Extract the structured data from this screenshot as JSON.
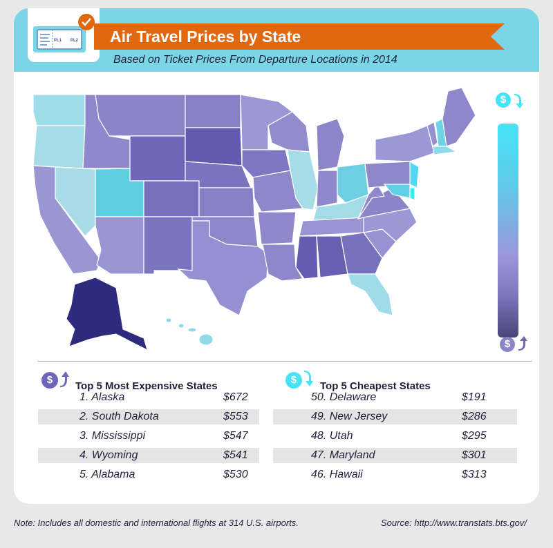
{
  "header": {
    "title": "Air Travel Prices by State",
    "subtitle": "Based on Ticket Prices From Departure Locations in 2014"
  },
  "icon": {
    "boarding_pass_from": "PL1",
    "boarding_pass_to": "PL2"
  },
  "legend": {
    "top_icon": "dollar-down-icon",
    "bottom_icon": "dollar-up-icon"
  },
  "colors": {
    "header_bg": "#7ad6e6",
    "banner": "#e2680f",
    "cheap": "#46e4f8",
    "mid": "#9b96da",
    "expensive": "#2e2a7c",
    "navy_text": "#1f1f3a"
  },
  "chart_data": {
    "type": "table",
    "expensive": {
      "title": "Top 5 Most Expensive States",
      "rows": [
        {
          "label": "1. Alaska",
          "price": "$672"
        },
        {
          "label": "2. South Dakota",
          "price": "$553"
        },
        {
          "label": "3. Mississippi",
          "price": "$547"
        },
        {
          "label": "4. Wyoming",
          "price": "$541"
        },
        {
          "label": "5. Alabama",
          "price": "$530"
        }
      ]
    },
    "cheapest": {
      "title": "Top 5 Cheapest States",
      "rows": [
        {
          "label": "50. Delaware",
          "price": "$191"
        },
        {
          "label": "49. New Jersey",
          "price": "$286"
        },
        {
          "label": "48. Utah",
          "price": "$295"
        },
        {
          "label": "47. Maryland",
          "price": "$301"
        },
        {
          "label": "46. Hawaii",
          "price": "$313"
        }
      ]
    }
  },
  "footer": {
    "note": "Note: Includes all domestic and international flights at 314 U.S. airports.",
    "source": "Source: http://www.transtats.bts.gov/"
  }
}
